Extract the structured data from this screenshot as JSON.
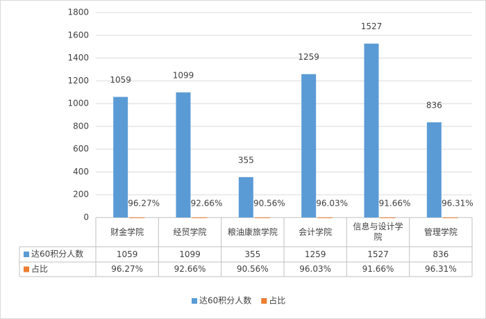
{
  "chart_data": {
    "type": "bar",
    "categories": [
      "财金学院",
      "经贸学院",
      "粮油康旅学院",
      "会计学院",
      "信息与设计学院",
      "管理学院"
    ],
    "series": [
      {
        "name": "达60积分人数",
        "color": "#5b9bd5",
        "values": [
          1059,
          1099,
          355,
          1259,
          1527,
          836
        ]
      },
      {
        "name": "占比",
        "color": "#ed7d31",
        "values": [
          0.9627,
          0.9266,
          0.9056,
          0.9603,
          0.9166,
          0.9631
        ],
        "value_labels": [
          "96.27%",
          "92.66%",
          "90.56%",
          "96.03%",
          "91.66%",
          "96.31%"
        ]
      }
    ],
    "ylim": [
      0,
      1800
    ],
    "yticks": [
      0,
      200,
      400,
      600,
      800,
      1000,
      1200,
      1400,
      1600,
      1800
    ],
    "grid": true,
    "legend": "bottom",
    "data_table": true
  }
}
